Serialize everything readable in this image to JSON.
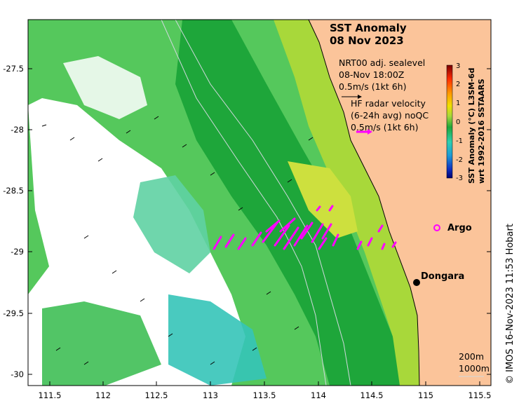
{
  "title": {
    "line1": "SST Anomaly",
    "line2": "08 Nov 2023"
  },
  "legend": {
    "sealevel": {
      "line1": "NRT00 adj. sealevel",
      "line2": "08-Nov 18:00Z",
      "scale": "0.5m/s (1kt 6h)"
    },
    "radar": {
      "line1": "HF radar velocity",
      "line2": "(6-24h avg) noQC",
      "scale": "0.5m/s (1kt 6h)"
    }
  },
  "colorbar": {
    "label_line1": "SST Anomaly (°C) L3SM-6d",
    "label_line2": "wrt 1992-2016 SSTAARS",
    "ticks": [
      "3",
      "2",
      "1",
      "0",
      "-1",
      "-2",
      "-3"
    ],
    "min": -3,
    "max": 3
  },
  "axes": {
    "x_ticks": [
      "111.5",
      "112",
      "112.5",
      "113",
      "113.5",
      "114",
      "114.5",
      "115",
      "115.5"
    ],
    "y_ticks": [
      "-27.5",
      "-28",
      "-28.5",
      "-29",
      "-29.5",
      "-30"
    ],
    "lon_range": [
      111.3,
      115.65
    ],
    "lat_range": [
      -30.1,
      -27.1
    ]
  },
  "places": {
    "argo": "Argo",
    "dongara": "Dongara"
  },
  "isobaths": {
    "a": "200m",
    "b": "1000m"
  },
  "copyright": "© IMOS 16-Nov-2023 11:53 Hobart",
  "colors": {
    "land": "#fbc49a",
    "radar": "#ff00ff",
    "argo": "#ff00ff"
  }
}
